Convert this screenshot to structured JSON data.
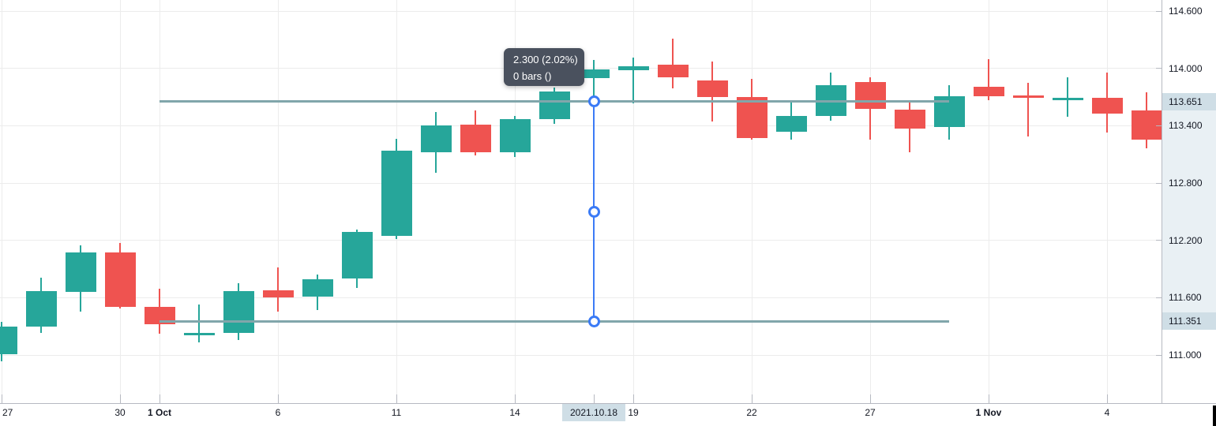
{
  "colors": {
    "up": "#26a69a",
    "down": "#ef5350",
    "grid": "#ececec",
    "axis_border": "#b6b9c1",
    "axis_text": "#131722",
    "trend_line": "#81a6ab",
    "measure_blue": "#3b7bf6",
    "tooltip_bg": "#4a515e",
    "tooltip_text": "#ffffff",
    "axis_highlight_bg": "#cfdee6",
    "axis_band_bg": "#e9f0f4",
    "background": "#ffffff"
  },
  "measure_tool": {
    "tooltip_line1": "2.300 (2.02%)",
    "tooltip_line2": "0 bars ()",
    "change": "2.300",
    "change_percent": "2.02%",
    "bars": 0,
    "from_price": 113.651,
    "to_price": 111.351,
    "at_bar_date": "2021.10.18",
    "at_bar_index": 15
  },
  "trend_lines": [
    {
      "price": 113.651,
      "from_bar": 4,
      "to_bar": 24
    },
    {
      "price": 111.351,
      "from_bar": 4,
      "to_bar": 24
    }
  ],
  "price_axis": {
    "ticks": [
      {
        "label": "114.600",
        "value": 114.6
      },
      {
        "label": "114.000",
        "value": 114.0
      },
      {
        "label": "113.400",
        "value": 113.4
      },
      {
        "label": "112.800",
        "value": 112.8
      },
      {
        "label": "112.200",
        "value": 112.2
      },
      {
        "label": "111.600",
        "value": 111.6
      },
      {
        "label": "111.000",
        "value": 111.0
      }
    ],
    "highlighted": [
      {
        "label": "113.651",
        "value": 113.651
      },
      {
        "label": "111.351",
        "value": 111.351
      }
    ]
  },
  "time_axis": {
    "ticks": [
      {
        "label": "27",
        "bar": 0,
        "major": false
      },
      {
        "label": "30",
        "bar": 3,
        "major": false
      },
      {
        "label": "1 Oct",
        "bar": 4,
        "major": true
      },
      {
        "label": "6",
        "bar": 7,
        "major": false
      },
      {
        "label": "11",
        "bar": 10,
        "major": false
      },
      {
        "label": "14",
        "bar": 13,
        "major": false
      },
      {
        "label": "19",
        "bar": 16,
        "major": false
      },
      {
        "label": "22",
        "bar": 19,
        "major": false
      },
      {
        "label": "27",
        "bar": 22,
        "major": false
      },
      {
        "label": "1 Nov",
        "bar": 25,
        "major": true
      },
      {
        "label": "4",
        "bar": 28,
        "major": false
      }
    ],
    "highlighted": {
      "label": "2021.10.18",
      "bar": 15
    }
  },
  "chart_data": {
    "type": "candlestick",
    "title": "",
    "xlabel": "",
    "ylabel": "",
    "ylim": [
      110.9,
      114.7
    ],
    "grid": true,
    "x": [
      "2021-09-27",
      "2021-09-28",
      "2021-09-29",
      "2021-09-30",
      "2021-10-01",
      "2021-10-04",
      "2021-10-05",
      "2021-10-06",
      "2021-10-07",
      "2021-10-08",
      "2021-10-11",
      "2021-10-12",
      "2021-10-13",
      "2021-10-14",
      "2021-10-15",
      "2021-10-18",
      "2021-10-19",
      "2021-10-20",
      "2021-10-21",
      "2021-10-22",
      "2021-10-25",
      "2021-10-26",
      "2021-10-27",
      "2021-10-28",
      "2021-10-29",
      "2021-11-01",
      "2021-11-02",
      "2021-11-03",
      "2021-11-04",
      "2021-11-05"
    ],
    "open": [
      111.01,
      111.3,
      111.66,
      112.07,
      111.5,
      111.21,
      111.23,
      111.68,
      111.61,
      111.8,
      112.25,
      113.12,
      113.41,
      113.12,
      113.47,
      113.9,
      113.98,
      114.04,
      113.87,
      113.7,
      113.34,
      113.5,
      113.86,
      113.57,
      113.39,
      113.81,
      113.72,
      113.67,
      113.69,
      113.56
    ],
    "high": [
      111.35,
      111.81,
      112.15,
      112.17,
      111.69,
      111.53,
      111.75,
      111.92,
      111.84,
      112.31,
      113.26,
      113.54,
      113.56,
      113.5,
      113.8,
      114.09,
      114.11,
      114.31,
      114.07,
      113.89,
      113.66,
      113.96,
      113.91,
      113.64,
      113.82,
      114.1,
      113.85,
      113.91,
      113.96,
      113.75
    ],
    "low": [
      110.93,
      111.23,
      111.45,
      111.49,
      111.22,
      111.13,
      111.16,
      111.45,
      111.47,
      111.7,
      112.21,
      112.91,
      113.09,
      113.07,
      113.42,
      113.651,
      113.63,
      113.79,
      113.44,
      113.25,
      113.25,
      113.45,
      113.25,
      113.12,
      113.25,
      113.67,
      113.29,
      113.49,
      113.33,
      113.16
    ],
    "close": [
      111.3,
      111.67,
      112.07,
      111.5,
      111.32,
      111.23,
      111.67,
      111.6,
      111.79,
      112.29,
      113.14,
      113.4,
      113.12,
      113.47,
      113.76,
      113.99,
      114.02,
      113.91,
      113.7,
      113.27,
      113.5,
      113.82,
      113.58,
      113.37,
      113.71,
      113.71,
      113.69,
      113.69,
      113.53,
      113.25
    ],
    "legend": [],
    "annotations": [
      "2.300 (2.02%)",
      "0 bars ()"
    ]
  }
}
